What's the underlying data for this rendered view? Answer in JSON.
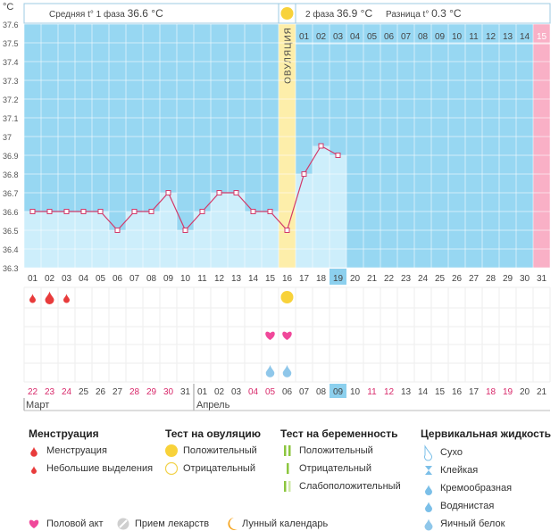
{
  "header": {
    "unit": "°C",
    "phase1_label": "Средняя t° 1 фаза",
    "phase1_value": "36.6 °C",
    "phase2_label": "2 фаза",
    "phase2_value": "36.9 °C",
    "diff_label": "Разница t°",
    "diff_value": "0.3 °C"
  },
  "ovulation_label": "ОВУЛЯЦИЯ",
  "colors": {
    "sky": "#97d7f2",
    "bar": "#cdeefb",
    "line": "#d23a6a",
    "ovulation": "#fdeeaa",
    "period": "#f9b0c6",
    "today": "#8cd0ee",
    "red_text": "#d8286a"
  },
  "chart_data": {
    "type": "line",
    "title": "",
    "xlabel": "",
    "ylabel": "°C",
    "ylim": [
      36.3,
      37.6
    ],
    "yticks": [
      "37.6",
      "37.5",
      "37.4",
      "37.3",
      "37.2",
      "37.1",
      "37",
      "36.9",
      "36.8",
      "36.7",
      "36.6",
      "36.5",
      "36.4",
      "36.3"
    ],
    "cycle_days": [
      "01",
      "02",
      "03",
      "04",
      "05",
      "06",
      "07",
      "08",
      "09",
      "10",
      "11",
      "12",
      "13",
      "14",
      "15",
      "16",
      "17",
      "18",
      "19",
      "20",
      "21",
      "22",
      "23",
      "24",
      "25",
      "26",
      "27",
      "28",
      "29",
      "30",
      "31"
    ],
    "phase2_days": [
      "01",
      "02",
      "03",
      "04",
      "05",
      "06",
      "07",
      "08",
      "09",
      "10",
      "11",
      "12",
      "13",
      "14",
      "15"
    ],
    "temperatures": [
      36.6,
      36.6,
      36.6,
      36.6,
      36.6,
      36.5,
      36.6,
      36.6,
      36.7,
      36.5,
      36.6,
      36.7,
      36.7,
      36.6,
      36.6,
      36.5,
      36.8,
      36.95,
      36.9
    ],
    "ovulation_day": 16,
    "today_cycle_day": 19,
    "period_day_next": 31,
    "dates": [
      "22",
      "23",
      "24",
      "25",
      "26",
      "27",
      "28",
      "29",
      "30",
      "31",
      "01",
      "02",
      "03",
      "04",
      "05",
      "06",
      "07",
      "08",
      "09",
      "10",
      "11",
      "12",
      "13",
      "14",
      "15",
      "16",
      "17",
      "18",
      "19",
      "20",
      "21"
    ],
    "red_date_indices": [
      0,
      1,
      2,
      6,
      7,
      8,
      13,
      14,
      20,
      21,
      27,
      28
    ],
    "months": [
      "Март",
      "Апрель"
    ]
  },
  "markers": {
    "menstruation_days": [
      1,
      2,
      3
    ],
    "ovulation_positive_day": 16,
    "intercourse_days": [
      15,
      16
    ],
    "egg_white_days": [
      15,
      16
    ]
  },
  "legend": {
    "menstruation": {
      "title": "Менструация",
      "items": [
        "Менструация",
        "Небольшие выделения"
      ]
    },
    "ovulation_test": {
      "title": "Тест на овуляцию",
      "items": [
        "Положительный",
        "Отрицательный"
      ]
    },
    "pregnancy_test": {
      "title": "Тест на беременность",
      "items": [
        "Положительный",
        "Отрицательный",
        "Слабоположительный"
      ]
    },
    "cervical": {
      "title": "Цервикальная жидкость",
      "items": [
        "Сухо",
        "Клейкая",
        "Кремообразная",
        "Водянистая",
        "Яичный белок"
      ]
    },
    "bottom": [
      "Половой акт",
      "Прием лекарств",
      "Лунный календарь"
    ]
  }
}
